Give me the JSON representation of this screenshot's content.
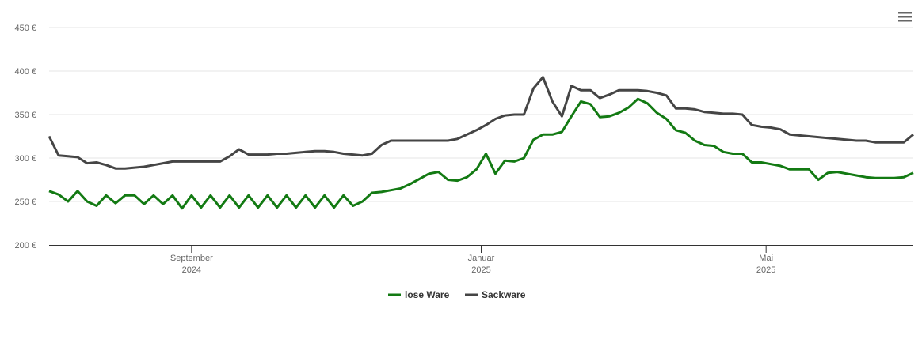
{
  "chart_data": {
    "type": "line",
    "xlim": [
      0,
      91
    ],
    "xticks": [
      {
        "value": 15,
        "label": [
          "September",
          "2024"
        ]
      },
      {
        "value": 45.5,
        "label": [
          "Januar",
          "2025"
        ]
      },
      {
        "value": 75.5,
        "label": [
          "Mai",
          "2025"
        ]
      }
    ],
    "ylim": [
      200,
      450
    ],
    "yticks": [
      {
        "value": 200,
        "label": "200 €"
      },
      {
        "value": 250,
        "label": "250 €"
      },
      {
        "value": 300,
        "label": "300 €"
      },
      {
        "value": 350,
        "label": "350 €"
      },
      {
        "value": 400,
        "label": "400 €"
      },
      {
        "value": 450,
        "label": "450 €"
      }
    ],
    "grid": true,
    "legend": "bottom",
    "series": [
      {
        "name": "lose Ware",
        "color": "#137a13",
        "values": [
          262,
          258,
          250,
          262,
          250,
          245,
          257,
          248,
          257,
          257,
          247,
          257,
          247,
          257,
          242,
          257,
          243,
          257,
          243,
          257,
          243,
          257,
          243,
          257,
          243,
          257,
          243,
          257,
          243,
          257,
          243,
          257,
          245,
          250,
          260,
          261,
          263,
          265,
          270,
          276,
          282,
          284,
          275,
          274,
          278,
          287,
          305,
          282,
          297,
          296,
          300,
          321,
          327,
          327,
          330,
          348,
          365,
          362,
          347,
          348,
          352,
          358,
          368,
          363,
          352,
          345,
          332,
          329,
          320,
          315,
          314,
          307,
          305,
          305,
          295,
          295,
          293,
          291,
          287,
          287,
          287,
          275,
          283,
          284,
          282,
          280,
          278,
          277,
          277,
          277,
          278,
          283
        ]
      },
      {
        "name": "Sackware",
        "color": "#454545",
        "values": [
          325,
          303,
          302,
          301,
          294,
          295,
          292,
          288,
          288,
          289,
          290,
          292,
          294,
          296,
          296,
          296,
          296,
          296,
          296,
          302,
          310,
          304,
          304,
          304,
          305,
          305,
          306,
          307,
          308,
          308,
          307,
          305,
          304,
          303,
          305,
          315,
          320,
          320,
          320,
          320,
          320,
          320,
          320,
          322,
          327,
          332,
          338,
          345,
          349,
          350,
          350,
          380,
          393,
          365,
          348,
          383,
          378,
          378,
          369,
          373,
          378,
          378,
          378,
          377,
          375,
          372,
          357,
          357,
          356,
          353,
          352,
          351,
          351,
          350,
          338,
          336,
          335,
          333,
          327,
          326,
          325,
          324,
          323,
          322,
          321,
          320,
          320,
          318,
          318,
          318,
          318,
          327
        ]
      }
    ]
  }
}
